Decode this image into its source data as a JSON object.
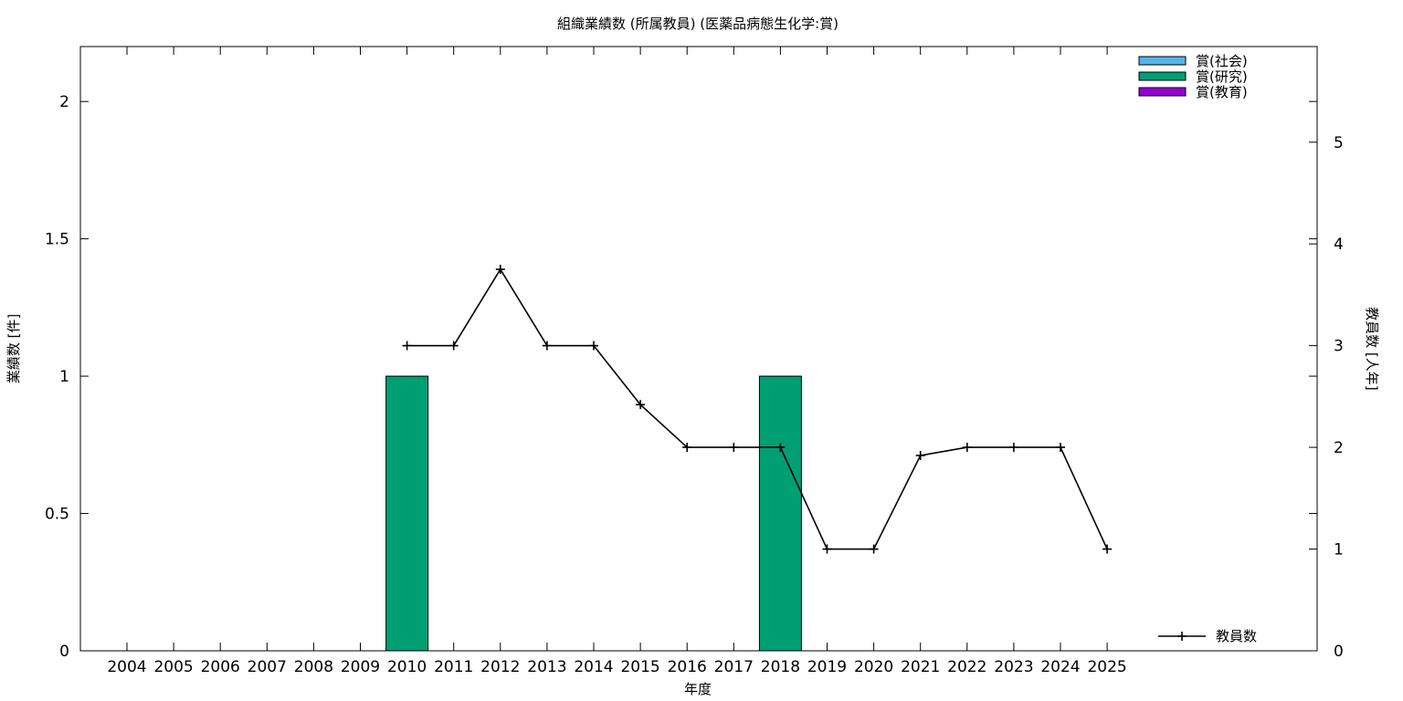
{
  "chart_data": {
    "type": "bar",
    "title": "組織業績数 (所属教員) (医薬品病態生化学:賞)",
    "xlabel": "年度",
    "ylabel": "業績数 [件]",
    "y2label": "教員数 [人年]",
    "categories": [
      "2004",
      "2005",
      "2006",
      "2007",
      "2008",
      "2009",
      "2010",
      "2011",
      "2012",
      "2013",
      "2014",
      "2015",
      "2016",
      "2017",
      "2018",
      "2019",
      "2020",
      "2021",
      "2022",
      "2023",
      "2024",
      "2025"
    ],
    "ylim": [
      0,
      2.2
    ],
    "y2lim": [
      0,
      5.94
    ],
    "yticks": [
      "0",
      "0.5",
      "1",
      "1.5",
      "2"
    ],
    "y2ticks": [
      "0",
      "1",
      "2",
      "3",
      "4",
      "5"
    ],
    "grid": false,
    "legend_position": "top-right",
    "series": [
      {
        "name": "賞(社会)",
        "type": "bar",
        "color": "#56b4e9",
        "values": [
          0,
          0,
          0,
          0,
          0,
          0,
          0,
          0,
          0,
          0,
          0,
          0,
          0,
          0,
          0,
          0,
          0,
          0,
          0,
          0,
          0,
          0
        ]
      },
      {
        "name": "賞(研究)",
        "type": "bar",
        "color": "#009e73",
        "values": [
          0,
          0,
          0,
          0,
          0,
          0,
          1,
          0,
          0,
          0,
          0,
          0,
          0,
          0,
          1,
          0,
          0,
          0,
          0,
          0,
          0,
          0
        ]
      },
      {
        "name": "賞(教育)",
        "type": "bar",
        "color": "#9400d3",
        "values": [
          0,
          0,
          0,
          0,
          0,
          0,
          0,
          0,
          0,
          0,
          0,
          0,
          0,
          0,
          0,
          0,
          0,
          0,
          0,
          0,
          0,
          0
        ]
      },
      {
        "name": "教員数",
        "type": "line",
        "axis": "y2",
        "color": "#000000",
        "x": [
          "2010",
          "2011",
          "2012",
          "2013",
          "2014",
          "2015",
          "2016",
          "2017",
          "2018",
          "2019",
          "2020",
          "2021",
          "2022",
          "2023",
          "2024",
          "2025"
        ],
        "values": [
          3,
          3,
          3.75,
          3,
          3,
          2.42,
          2,
          2,
          2,
          1,
          1,
          1.92,
          2,
          2,
          2,
          1
        ]
      }
    ]
  }
}
